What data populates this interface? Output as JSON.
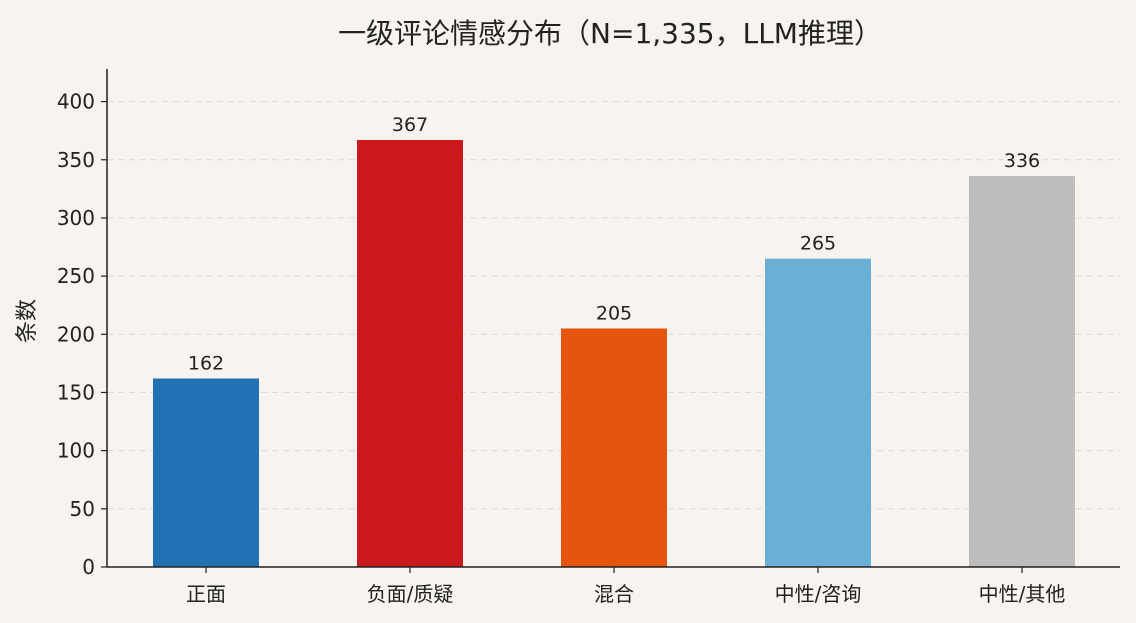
{
  "chart_data": {
    "type": "bar",
    "title": "一级评论情感分布（N=1,335，LLM推理）",
    "xlabel": "",
    "ylabel": "条数",
    "categories": [
      "正面",
      "负面/质疑",
      "混合",
      "中性/咨询",
      "中性/其他"
    ],
    "values": [
      162,
      367,
      205,
      265,
      336
    ],
    "data_labels": [
      "162",
      "367",
      "205",
      "265",
      "336"
    ],
    "colors": [
      "#2271b5",
      "#cb181d",
      "#e6550d",
      "#6baed6",
      "#bdbdbd"
    ],
    "ylim": [
      0,
      428
    ],
    "yticks": [
      0,
      50,
      100,
      150,
      200,
      250,
      300,
      350,
      400
    ],
    "ytick_labels": [
      "0",
      "50",
      "100",
      "150",
      "200",
      "250",
      "300",
      "350",
      "400"
    ],
    "grid": "y-dashed",
    "background": "#f7f4ef"
  }
}
